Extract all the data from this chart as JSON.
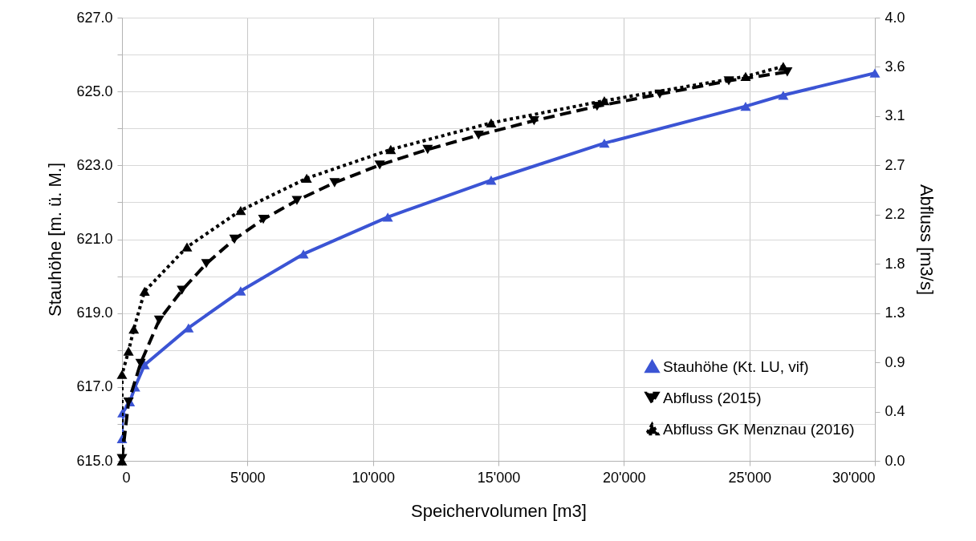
{
  "chart_data": {
    "type": "line",
    "xlabel": "Speichervolumen [m3]",
    "ylabel": "Stauhöhe [m. ü. M.]",
    "y2label": "Abfluss [m3/s]",
    "xlim": [
      0,
      30000
    ],
    "xticks": [
      0,
      {
        "value": 5000,
        "label": "5'000"
      },
      {
        "value": 10000,
        "label": "10'000"
      },
      {
        "value": 15000,
        "label": "15'000"
      },
      {
        "value": 20000,
        "label": "20'000"
      },
      {
        "value": 25000,
        "label": "25'000"
      },
      {
        "value": 30000,
        "label": "30'000"
      }
    ],
    "ylim": [
      615,
      627
    ],
    "yticks": [
      {
        "value": 615,
        "label": "615.0"
      },
      {
        "value": 616,
        "label": null
      },
      {
        "value": 617,
        "label": "617.0"
      },
      {
        "value": 618,
        "label": null
      },
      {
        "value": 619,
        "label": "619.0"
      },
      {
        "value": 620,
        "label": null
      },
      {
        "value": 621,
        "label": "621.0"
      },
      {
        "value": 622,
        "label": null
      },
      {
        "value": 623,
        "label": "623.0"
      },
      {
        "value": 624,
        "label": null
      },
      {
        "value": 625,
        "label": "625.0"
      },
      {
        "value": 626,
        "label": null
      },
      {
        "value": 627,
        "label": "627.0"
      }
    ],
    "y2lim": [
      0,
      4
    ],
    "y2ticks": [
      {
        "value": 0,
        "label": "0.0"
      },
      {
        "value": 0.4444,
        "label": "0.4"
      },
      {
        "value": 0.8889,
        "label": "0.9"
      },
      {
        "value": 1.3333,
        "label": "1.3"
      },
      {
        "value": 1.7778,
        "label": "1.8"
      },
      {
        "value": 2.2222,
        "label": "2.2"
      },
      {
        "value": 2.6667,
        "label": "2.7"
      },
      {
        "value": 3.1111,
        "label": "3.1"
      },
      {
        "value": 3.5556,
        "label": "3.6"
      },
      {
        "value": 4,
        "label": "4.0"
      }
    ],
    "grid": true,
    "legend": "bottom right",
    "series": [
      {
        "name": "Stauhöhe (Kt. LU, vif)",
        "color": "#3b54d4",
        "line_style": "solid",
        "marker": "triangle",
        "x": [
          0,
          20,
          310,
          520,
          900,
          2650,
          4730,
          7230,
          10590,
          14710,
          19220,
          24850,
          26350,
          30000
        ],
        "values": [
          615.6,
          616.3,
          616.6,
          617.0,
          617.6,
          618.6,
          619.6,
          620.6,
          621.6,
          622.6,
          623.6,
          624.6,
          624.9,
          625.5
        ]
      },
      {
        "name": "Abfluss (2015)",
        "color": "#000000",
        "line_style": "dashed",
        "marker": "triangle-down",
        "axis": "y2",
        "x": [
          0,
          260,
          740,
          1480,
          2390,
          3360,
          4480,
          5630,
          6970,
          8470,
          10270,
          12180,
          14210,
          16420,
          18930,
          21430,
          24180,
          26510
        ],
        "values": [
          0.02,
          0.53,
          0.88,
          1.27,
          1.54,
          1.78,
          2.0,
          2.18,
          2.35,
          2.51,
          2.67,
          2.81,
          2.94,
          3.07,
          3.2,
          3.31,
          3.43,
          3.51
        ]
      },
      {
        "name": "Abfluss GK Menznau (2016)",
        "color": "#000000",
        "line_style": "dotted",
        "marker": "triangle",
        "axis": "y2",
        "x": [
          0,
          0,
          260,
          470,
          900,
          2590,
          4730,
          7360,
          10710,
          14710,
          19220,
          24850,
          26350
        ],
        "values": [
          0.0,
          0.78,
          0.99,
          1.19,
          1.53,
          1.93,
          2.26,
          2.55,
          2.81,
          3.05,
          3.25,
          3.47,
          3.56
        ]
      }
    ]
  }
}
